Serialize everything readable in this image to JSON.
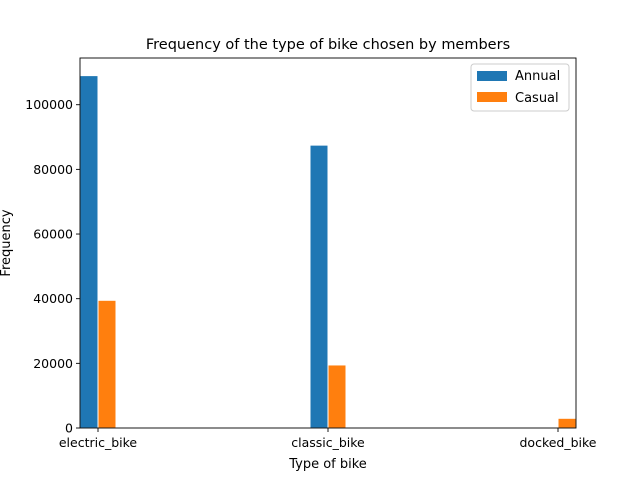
{
  "chart_data": {
    "type": "bar",
    "title": "Frequency of the type of bike chosen by members",
    "xlabel": "Type of bike",
    "ylabel": "Frequency",
    "categories": [
      "electric_bike",
      "classic_bike",
      "docked_bike"
    ],
    "series": [
      {
        "name": "Annual",
        "color": "#1f77b4",
        "values": [
          109000,
          87500,
          0
        ]
      },
      {
        "name": "Casual",
        "color": "#ff7f0e",
        "values": [
          39500,
          19500,
          3000
        ]
      }
    ],
    "ylim": [
      0,
      114450
    ],
    "yticks": [
      0,
      20000,
      40000,
      60000,
      80000,
      100000
    ],
    "ytick_labels": [
      "0",
      "20000",
      "40000",
      "60000",
      "80000",
      "100000"
    ],
    "legend_position": "top-right",
    "grid": false
  }
}
